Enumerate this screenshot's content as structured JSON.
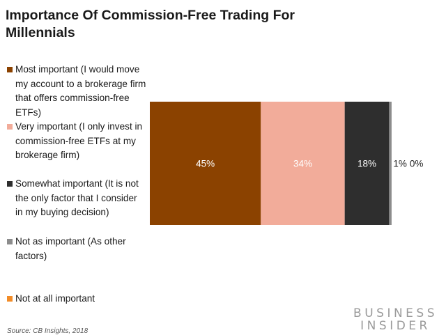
{
  "title": "Importance Of Commission-Free Trading For Millennials",
  "source": "Source: CB Insights, 2018",
  "logo": {
    "line1": "BUSINESS",
    "line2": "INSIDER"
  },
  "chart_data": {
    "type": "bar",
    "orientation": "horizontal",
    "stacked": true,
    "series": [
      {
        "name": "Most important (I would move my account to a brokerage firm that offers commission-free ETFs)",
        "value": 45,
        "label": "45%",
        "color": "#8B4200",
        "label_color": "#ffffff"
      },
      {
        "name": "Very important (I only invest in commission-free ETFs at my brokerage firm)",
        "value": 34,
        "label": "34%",
        "color": "#F2AC9A",
        "label_color": "#ffffff"
      },
      {
        "name": "Somewhat important (It is not the only factor that I consider in my buying decision)",
        "value": 18,
        "label": "18%",
        "color": "#2E2E2E",
        "label_color": "#ffffff"
      },
      {
        "name": "Not as important (As other factors)",
        "value": 1,
        "label": "1%",
        "color": "#8C8C8C",
        "label_color": "#222222"
      },
      {
        "name": "Not at all important",
        "value": 0,
        "label": "0%",
        "color": "#F28C28",
        "label_color": "#222222"
      }
    ],
    "xlim": [
      0,
      100
    ],
    "legend_position": "left",
    "grid": false
  }
}
